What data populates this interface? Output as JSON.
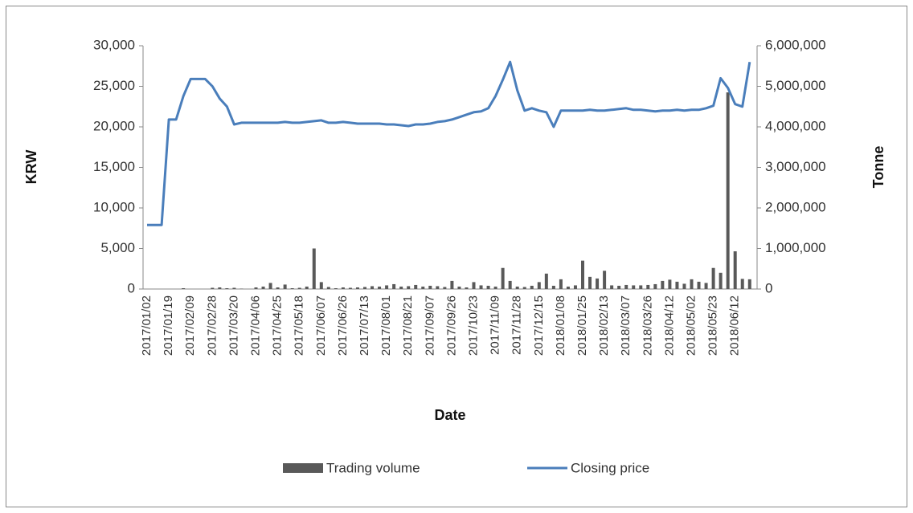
{
  "chart_data": {
    "type": "bar_line",
    "x_label": "Date",
    "y_label": "KRW",
    "y2_label": "Tonne",
    "categories": [
      "2017/01/02",
      null,
      null,
      "2017/01/19",
      null,
      null,
      "2017/02/09",
      null,
      null,
      "2017/02/28",
      null,
      null,
      "2017/03/20",
      null,
      null,
      "2017/04/06",
      null,
      null,
      "2017/04/25",
      null,
      null,
      "2017/05/18",
      null,
      null,
      "2017/06/07",
      null,
      null,
      "2017/06/26",
      null,
      null,
      "2017/07/13",
      null,
      null,
      "2017/08/01",
      null,
      null,
      "2017/08/21",
      null,
      null,
      "2017/09/07",
      null,
      null,
      "2017/09/26",
      null,
      null,
      "2017/10/23",
      null,
      null,
      "2017/11/09",
      null,
      null,
      "2017/11/28",
      null,
      null,
      "2017/12/15",
      null,
      null,
      "2018/01/08",
      null,
      null,
      "2018/01/25",
      null,
      null,
      "2018/02/13",
      null,
      null,
      "2018/03/07",
      null,
      null,
      "2018/03/26",
      null,
      null,
      "2018/04/12",
      null,
      null,
      "2018/05/02",
      null,
      null,
      "2018/05/23",
      null,
      null,
      "2018/06/12",
      null,
      null
    ],
    "series": [
      {
        "name": "Trading volume",
        "type": "bar",
        "axis": "y2",
        "color": "#595959",
        "values": [
          0,
          0,
          0,
          0,
          0,
          20000,
          0,
          0,
          0,
          30000,
          40000,
          20000,
          30000,
          10000,
          0,
          40000,
          60000,
          150000,
          40000,
          110000,
          20000,
          30000,
          60000,
          1000000,
          170000,
          50000,
          20000,
          40000,
          30000,
          40000,
          50000,
          70000,
          60000,
          90000,
          120000,
          60000,
          70000,
          100000,
          60000,
          80000,
          70000,
          50000,
          200000,
          60000,
          40000,
          170000,
          90000,
          80000,
          60000,
          520000,
          200000,
          60000,
          50000,
          80000,
          170000,
          380000,
          80000,
          240000,
          60000,
          90000,
          700000,
          300000,
          260000,
          450000,
          90000,
          80000,
          100000,
          90000,
          90000,
          100000,
          120000,
          200000,
          230000,
          180000,
          130000,
          240000,
          180000,
          150000,
          520000,
          400000,
          4850000,
          930000,
          250000,
          240000
        ]
      },
      {
        "name": "Closing price",
        "type": "line",
        "color": "#4a7ebb",
        "values": [
          7900,
          7900,
          7900,
          20900,
          20900,
          23800,
          25900,
          25900,
          25900,
          25000,
          23500,
          22500,
          20300,
          20500,
          20500,
          20500,
          20500,
          20500,
          20500,
          20600,
          20500,
          20500,
          20600,
          20700,
          20800,
          20500,
          20500,
          20600,
          20500,
          20400,
          20400,
          20400,
          20400,
          20300,
          20300,
          20200,
          20100,
          20300,
          20300,
          20400,
          20600,
          20700,
          20900,
          21200,
          21500,
          21800,
          21900,
          22300,
          23800,
          25800,
          28000,
          24500,
          22000,
          22300,
          22000,
          21800,
          20000,
          22000,
          22000,
          22000,
          22000,
          22100,
          22000,
          22000,
          22100,
          22200,
          22300,
          22100,
          22100,
          22000,
          21900,
          22000,
          22000,
          22100,
          22000,
          22100,
          22100,
          22300,
          22600,
          26000,
          24800,
          22800,
          22500,
          28000
        ]
      }
    ],
    "ylim": [
      0,
      30000
    ],
    "yticks": [
      0,
      {
        "value": 5000,
        "label": "5,000"
      },
      {
        "value": 10000,
        "label": "10,000"
      },
      {
        "value": 15000,
        "label": "15,000"
      },
      {
        "value": 20000,
        "label": "20,000"
      },
      {
        "value": 25000,
        "label": "25,000"
      },
      {
        "value": 30000,
        "label": "30,000"
      }
    ],
    "y2lim": [
      0,
      6000000
    ],
    "y2ticks": [
      0,
      {
        "value": 1000000,
        "label": "1,000,000"
      },
      {
        "value": 2000000,
        "label": "2,000,000"
      },
      {
        "value": 3000000,
        "label": "3,000,000"
      },
      {
        "value": 4000000,
        "label": "4,000,000"
      },
      {
        "value": 5000000,
        "label": "5,000,000"
      },
      {
        "value": 6000000,
        "label": "6,000,000"
      }
    ],
    "grid": false,
    "legend": "bottom"
  }
}
